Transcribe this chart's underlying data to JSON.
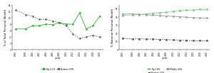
{
  "left": {
    "ylabel": "% of Total Personal Wealth",
    "xlabel": "year",
    "years": [
      1995,
      1998,
      2000,
      2002,
      2004,
      2006,
      2008,
      2010,
      2012,
      2014,
      2016,
      2018,
      2020
    ],
    "top1": [
      6.5,
      6.5,
      7.5,
      7.5,
      8.0,
      7.8,
      8.5,
      8.0,
      8.0,
      11.5,
      6.5,
      7.5,
      10.5
    ],
    "bottom50": [
      12.5,
      11.0,
      10.5,
      9.5,
      9.5,
      9.0,
      8.5,
      7.5,
      5.0,
      3.5,
      4.0,
      4.5,
      4.0
    ],
    "top1_color": "#2db32d",
    "bottom50_color": "#666666",
    "top1_label": "Top 0.1%",
    "bottom50_label": "Bottom 50%",
    "ylim": [
      0,
      14
    ],
    "yticks": [
      0,
      2,
      4,
      6,
      8,
      10,
      12,
      14
    ]
  },
  "right": {
    "ylabel": "% National Personal Wealth",
    "xlabel": "year",
    "years": [
      1995,
      1998,
      2000,
      2002,
      2004,
      2006,
      2008,
      2010,
      2012,
      2014,
      2016,
      2018,
      2020
    ],
    "top10": [
      42.0,
      43.0,
      43.0,
      44.0,
      44.5,
      45.5,
      46.0,
      47.0,
      48.0,
      48.5,
      49.0,
      49.5,
      49.5
    ],
    "middle40": [
      44.0,
      44.0,
      43.5,
      43.0,
      42.5,
      42.0,
      41.5,
      41.0,
      40.5,
      40.0,
      39.5,
      39.0,
      39.0
    ],
    "bottom50": [
      14.0,
      13.0,
      13.5,
      13.0,
      13.0,
      12.5,
      12.5,
      12.0,
      11.5,
      11.5,
      11.0,
      11.0,
      11.0
    ],
    "top10_color": "#2db32d",
    "middle40_color": "#999999",
    "bottom50_color": "#444444",
    "top10_label": "Top 10%",
    "middle40_label": "Middle 40%",
    "bottom50_label": "Bottom 50%",
    "ylim": [
      0,
      55
    ],
    "yticks": [
      0,
      10,
      20,
      30,
      40,
      50
    ]
  }
}
